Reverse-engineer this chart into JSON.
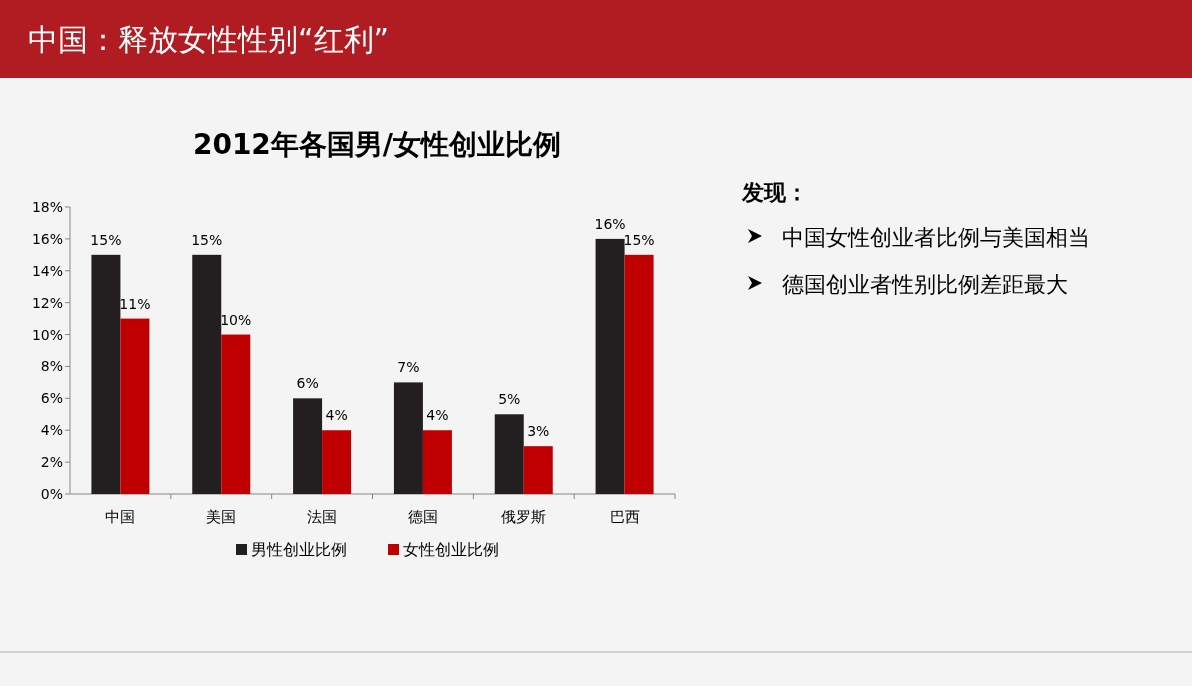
{
  "chart_data": {
    "type": "bar",
    "title": "中国：释放女性性别“红利”",
    "subtitle": "2012年各国男/女性创业比例",
    "categories": [
      "中国",
      "美国",
      "法国",
      "德国",
      "俄罗斯",
      "巴西"
    ],
    "series": [
      {
        "name": "男性创业比例",
        "color": "#231f20",
        "values": [
          15,
          15,
          6,
          7,
          5,
          16
        ],
        "value_labels": [
          "15%",
          "15%",
          "6%",
          "7%",
          "5%",
          "16%"
        ]
      },
      {
        "name": "女性创业比例",
        "color": "#c00000",
        "values": [
          11,
          10,
          4,
          4,
          3,
          15
        ],
        "value_labels": [
          "11%",
          "10%",
          "4%",
          "4%",
          "3%",
          "15%"
        ]
      }
    ],
    "ylim": [
      0,
      18
    ],
    "yticks": [
      {
        "value": 0,
        "label": "0%"
      },
      {
        "value": 2,
        "label": "2%"
      },
      {
        "value": 4,
        "label": "4%"
      },
      {
        "value": 6,
        "label": "6%"
      },
      {
        "value": 8,
        "label": "8%"
      },
      {
        "value": 10,
        "label": "10%"
      },
      {
        "value": 12,
        "label": "12%"
      },
      {
        "value": 14,
        "label": "14%"
      },
      {
        "value": 16,
        "label": "16%"
      },
      {
        "value": 18,
        "label": "18%"
      }
    ],
    "grid": false,
    "legend": "bottom",
    "annotations": [
      "发现：",
      "中国女性创业者比例与美国相当",
      "德国创业者性别比例差距最大"
    ]
  }
}
